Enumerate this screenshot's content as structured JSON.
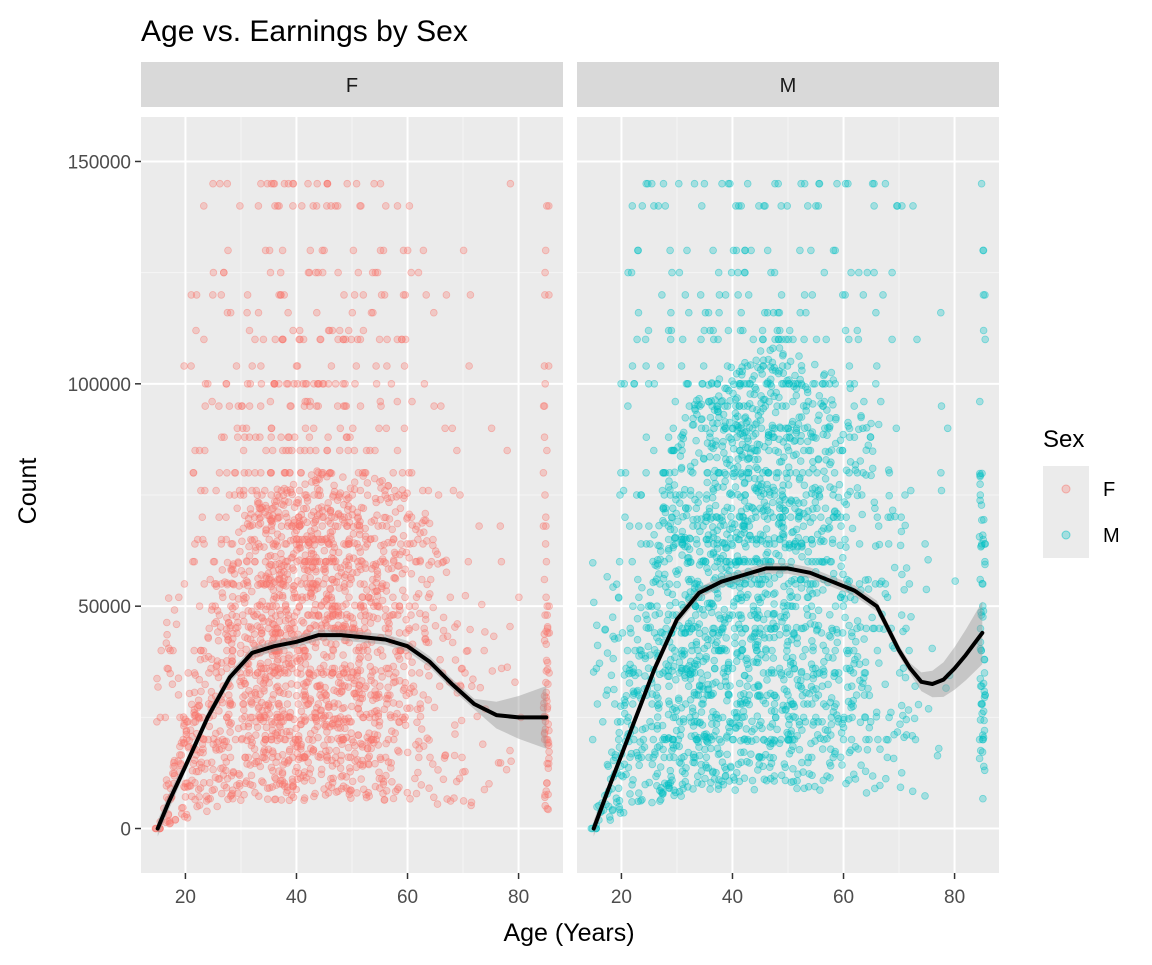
{
  "chart_data": {
    "type": "scatter",
    "title": "Age vs. Earnings by Sex",
    "xlabel": "Age (Years)",
    "ylabel": "Count",
    "xlim": [
      12,
      88
    ],
    "ylim": [
      -10000,
      160000
    ],
    "x_ticks": [
      20,
      40,
      60,
      80
    ],
    "x_tick_labels": [
      "20",
      "40",
      "60",
      "80"
    ],
    "y_ticks": [
      0,
      50000,
      100000,
      150000
    ],
    "y_tick_labels": [
      "0",
      "50000",
      "100000",
      "150000"
    ],
    "grid": true,
    "legend": {
      "title": "Sex",
      "position": "right",
      "entries": [
        {
          "label": "F",
          "color": "#F8766D"
        },
        {
          "label": "M",
          "color": "#00BFC4"
        }
      ]
    },
    "panels": [
      {
        "strip_label": "F",
        "point_color": "#F8766D",
        "point_alpha": 0.3,
        "age_range": [
          15,
          85
        ],
        "earnings_range": [
          0,
          150000
        ],
        "smooth": {
          "x": [
            15,
            17,
            20,
            24,
            28,
            32,
            36,
            40,
            44,
            48,
            52,
            56,
            60,
            64,
            68,
            72,
            76,
            80,
            85
          ],
          "y": [
            0,
            6000,
            14000,
            25000,
            34000,
            39500,
            41000,
            42000,
            43500,
            43500,
            43000,
            42500,
            41000,
            37500,
            32500,
            28000,
            25500,
            25000,
            25000
          ]
        }
      },
      {
        "strip_label": "M",
        "point_color": "#00BFC4",
        "point_alpha": 0.3,
        "age_range": [
          15,
          85
        ],
        "earnings_range": [
          0,
          150000
        ],
        "smooth": {
          "x": [
            15,
            18,
            22,
            26,
            30,
            34,
            38,
            42,
            46,
            50,
            54,
            58,
            62,
            66,
            70,
            72,
            74,
            76,
            78,
            80,
            82,
            85
          ],
          "y": [
            0,
            10000,
            23000,
            36000,
            47000,
            53000,
            55500,
            57000,
            58500,
            58500,
            57500,
            55500,
            53500,
            50000,
            40000,
            36000,
            33000,
            32500,
            33500,
            36000,
            39000,
            44000
          ]
        }
      }
    ]
  }
}
